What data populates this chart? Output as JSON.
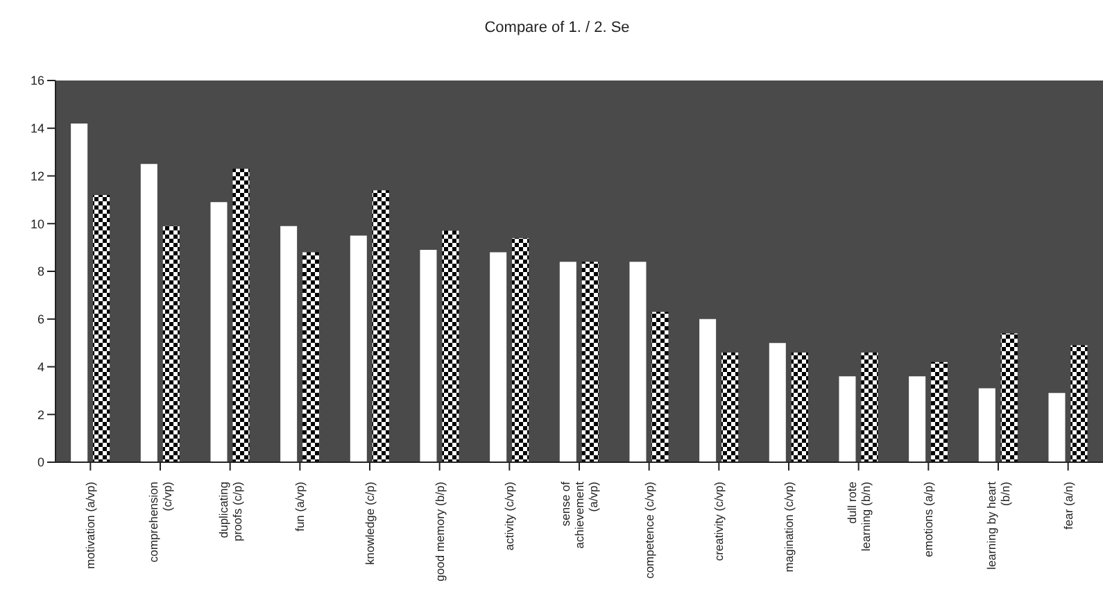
{
  "chart_data": {
    "type": "bar",
    "title": "Compare of 1. / 2. Se",
    "categories": [
      "motivation (a/vp)",
      "comprehension (c/vp)",
      "duplicating proofs (c/p)",
      "fun (a/vp)",
      "knowledge (c/p)",
      "good memory (b/p)",
      "activity (c/vp)",
      "sense of achievement (a/vp)",
      "competence (c/vp)",
      "creativity (c/vp)",
      "magination (c/vp)",
      "dull rote learning (b/n)",
      "emotions (a/p)",
      "learning by heart (b/n)",
      "fear (a/n)"
    ],
    "series": [
      {
        "color": "#ffffff",
        "values": [
          14.2,
          12.5,
          10.9,
          9.9,
          9.5,
          8.9,
          8.8,
          8.4,
          8.4,
          6.0,
          5.0,
          3.6,
          3.6,
          3.1,
          2.9
        ]
      },
      {
        "color": "#000000",
        "values": [
          11.2,
          9.9,
          12.3,
          8.8,
          11.4,
          9.7,
          9.4,
          8.4,
          6.3,
          4.6,
          4.6,
          4.6,
          4.2,
          5.4,
          4.9
        ]
      }
    ],
    "ylim": [
      0,
      16
    ],
    "yticks": [
      0,
      2,
      4,
      6,
      8,
      10,
      12,
      14,
      16
    ],
    "grid": false,
    "legend": false
  }
}
